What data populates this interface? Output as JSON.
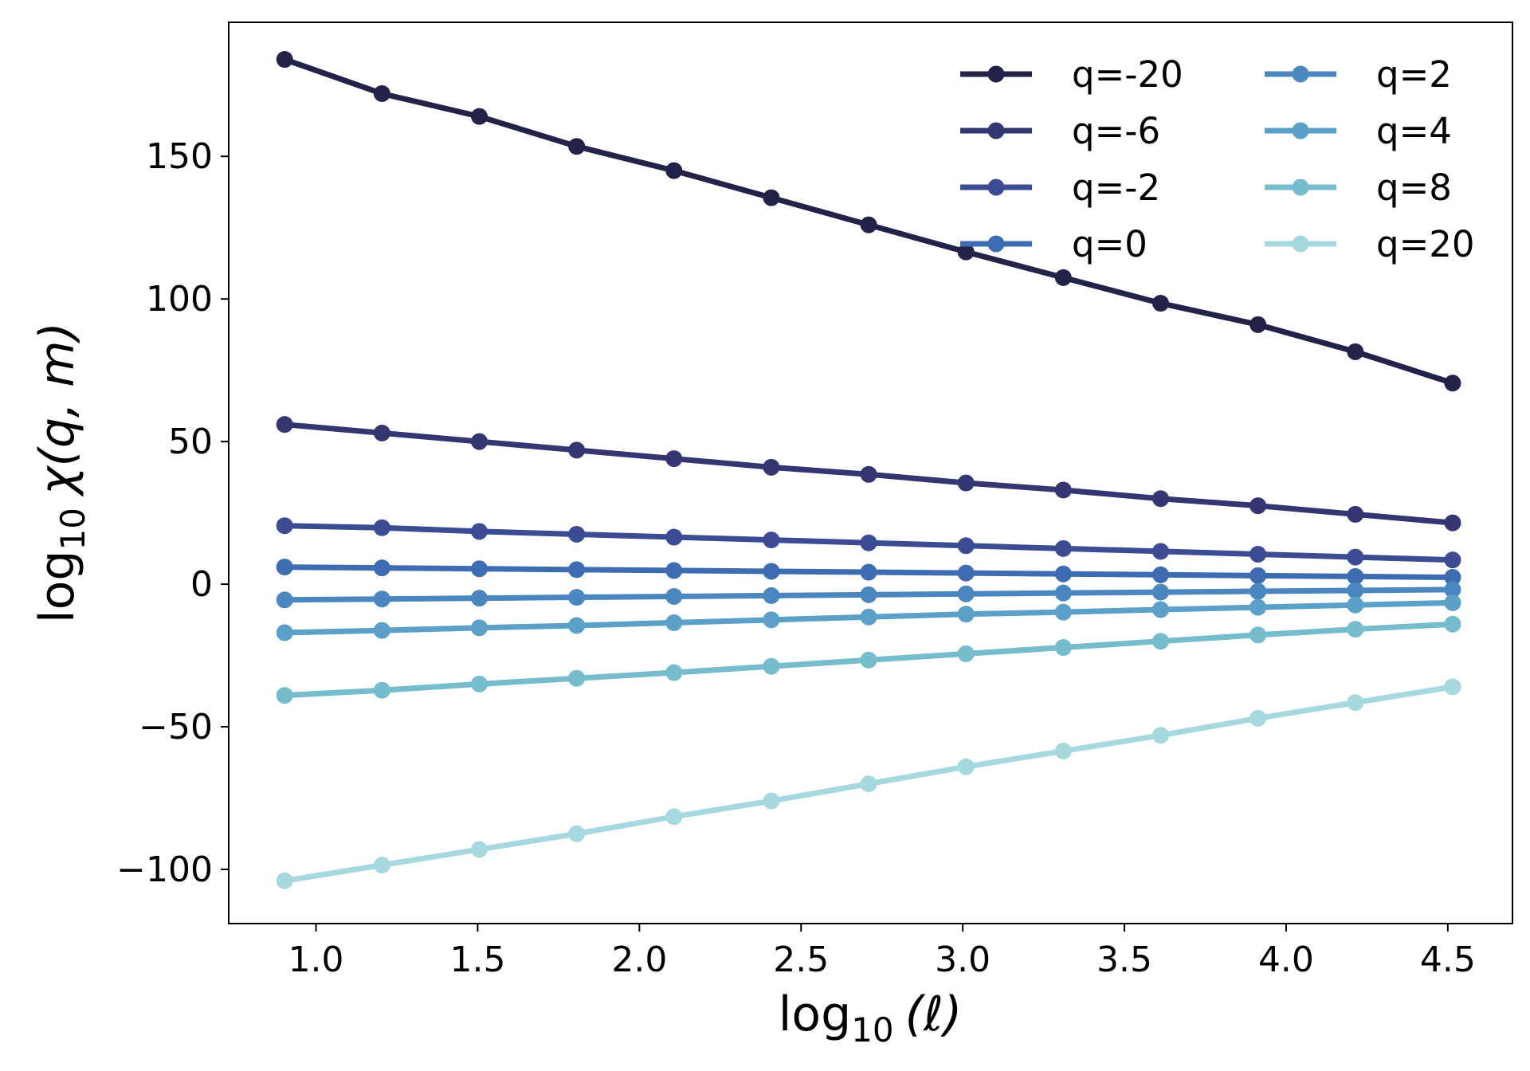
{
  "chart_data": {
    "type": "line",
    "title": "",
    "xlabel": "log10 (ℓ)",
    "xlabel_base": "log",
    "xlabel_sub": "10",
    "xlabel_rest": "(ℓ)",
    "ylabel": "log10 χ(q, m)",
    "ylabel_base": "log",
    "ylabel_sub": "10",
    "ylabel_rest": "χ(q, m)",
    "xlim": [
      0.73,
      4.7
    ],
    "ylim": [
      -119,
      197
    ],
    "xticks": [
      1.0,
      1.5,
      2.0,
      2.5,
      3.0,
      3.5,
      4.0,
      4.5
    ],
    "xtick_labels": [
      "1.0",
      "1.5",
      "2.0",
      "2.5",
      "3.0",
      "3.5",
      "4.0",
      "4.5"
    ],
    "yticks": [
      -100,
      -50,
      0,
      50,
      100,
      150
    ],
    "ytick_labels": [
      "−100",
      "−50",
      "0",
      "50",
      "100",
      "150"
    ],
    "legend_position": "top-right",
    "legend_columns": 2,
    "x": [
      0.903,
      1.204,
      1.505,
      1.806,
      2.107,
      2.408,
      2.709,
      3.01,
      3.311,
      3.612,
      3.913,
      4.214,
      4.515
    ],
    "series": [
      {
        "name": "q=-20",
        "color": "#23234a",
        "values": [
          184,
          172,
          164,
          153.5,
          145,
          135.5,
          126,
          116.5,
          107.5,
          98.5,
          91,
          81.5,
          70.5
        ]
      },
      {
        "name": "q=-6",
        "color": "#343672",
        "values": [
          56,
          53,
          50,
          47,
          44,
          41,
          38.5,
          35.5,
          33,
          30,
          27.5,
          24.5,
          21.5
        ]
      },
      {
        "name": "q=-2",
        "color": "#3b4b94",
        "values": [
          20.5,
          19.8,
          18.5,
          17.5,
          16.5,
          15.5,
          14.5,
          13.5,
          12.5,
          11.5,
          10.5,
          9.5,
          8.5
        ]
      },
      {
        "name": "q=0",
        "color": "#3d6cb3",
        "values": [
          6,
          5.7,
          5.4,
          5.1,
          4.8,
          4.5,
          4.2,
          3.9,
          3.6,
          3.3,
          3,
          2.7,
          2.4
        ]
      },
      {
        "name": "q=2",
        "color": "#4a87c0",
        "values": [
          -5.5,
          -5.2,
          -4.9,
          -4.6,
          -4.3,
          -4,
          -3.7,
          -3.4,
          -3.1,
          -2.8,
          -2.5,
          -2.2,
          -1.9
        ]
      },
      {
        "name": "q=4",
        "color": "#5aa0c8",
        "values": [
          -17,
          -16.2,
          -15.3,
          -14.5,
          -13.5,
          -12.5,
          -11.5,
          -10.5,
          -9.8,
          -8.9,
          -8.1,
          -7.3,
          -6.5
        ]
      },
      {
        "name": "q=8",
        "color": "#75bccd",
        "values": [
          -39,
          -37.2,
          -35,
          -33,
          -31,
          -28.8,
          -26.6,
          -24.4,
          -22.2,
          -20,
          -17.8,
          -15.8,
          -14
        ]
      },
      {
        "name": "q=20",
        "color": "#a6d9df",
        "values": [
          -104,
          -98.5,
          -93,
          -87.5,
          -81.5,
          -76,
          -70,
          -64,
          -58.5,
          -53,
          -47,
          -41.5,
          -36
        ]
      }
    ]
  }
}
